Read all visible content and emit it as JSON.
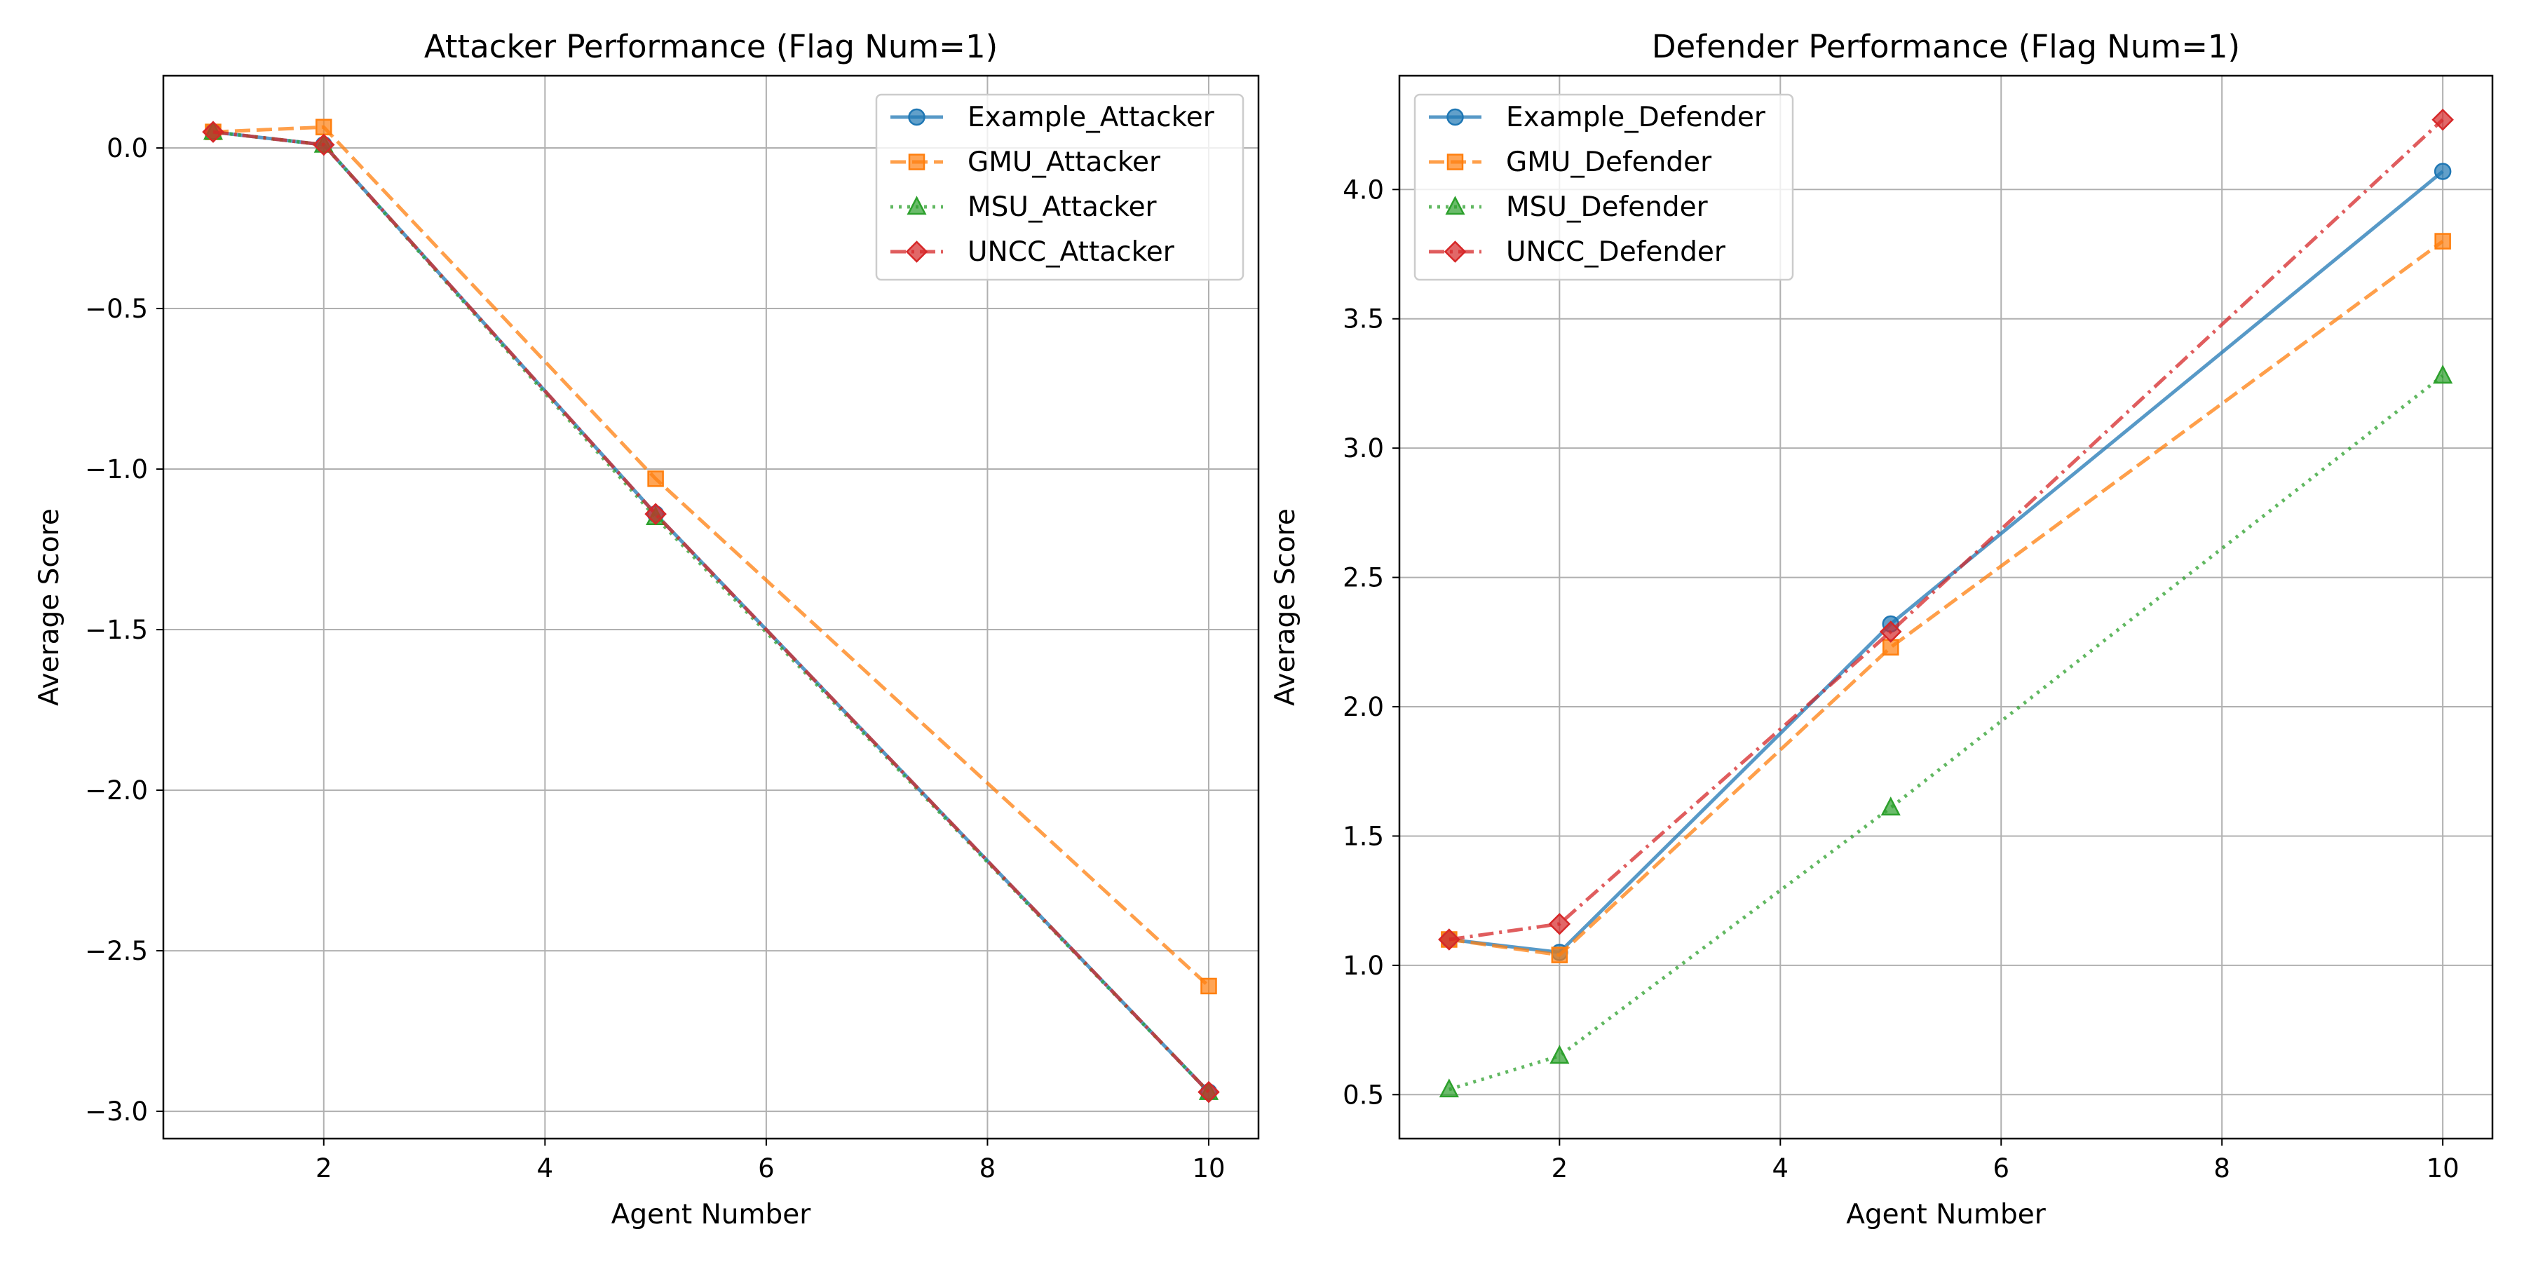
{
  "chart_data": [
    {
      "type": "line",
      "title": "Attacker Performance (Flag Num=1)",
      "xlabel": "Agent Number",
      "ylabel": "Average Score",
      "x": [
        1,
        2,
        5,
        10
      ],
      "xlim": [
        0.55,
        10.45
      ],
      "ylim": [
        -3.085,
        0.225
      ],
      "xticks": [
        2,
        4,
        6,
        8,
        10
      ],
      "yticks": [
        0.0,
        -0.5,
        -1.0,
        -1.5,
        -2.0,
        -2.5,
        -3.0
      ],
      "xtick_labels": [
        "2",
        "4",
        "6",
        "8",
        "10"
      ],
      "ytick_labels": [
        "0.0",
        "−0.5",
        "−1.0",
        "−1.5",
        "−2.0",
        "−2.5",
        "−3.0"
      ],
      "grid": true,
      "legend_position": "top-right",
      "series": [
        {
          "name": "Example_Attacker",
          "values": [
            0.05,
            0.01,
            -1.14,
            -2.94
          ],
          "color": "#1f77b4",
          "dash": "solid",
          "marker": "circle"
        },
        {
          "name": "GMU_Attacker",
          "values": [
            0.05,
            0.065,
            -1.03,
            -2.61
          ],
          "color": "#ff7f0e",
          "dash": "dashed",
          "marker": "square"
        },
        {
          "name": "MSU_Attacker",
          "values": [
            0.05,
            0.01,
            -1.15,
            -2.94
          ],
          "color": "#2ca02c",
          "dash": "dotted",
          "marker": "triangle"
        },
        {
          "name": "UNCC_Attacker",
          "values": [
            0.05,
            0.01,
            -1.14,
            -2.94
          ],
          "color": "#d62728",
          "dash": "dashdot",
          "marker": "diamond"
        }
      ]
    },
    {
      "type": "line",
      "title": "Defender Performance (Flag Num=1)",
      "xlabel": "Agent Number",
      "ylabel": "Average Score",
      "x": [
        1,
        2,
        5,
        10
      ],
      "xlim": [
        0.55,
        10.45
      ],
      "ylim": [
        0.33,
        4.44
      ],
      "xticks": [
        2,
        4,
        6,
        8,
        10
      ],
      "yticks": [
        0.5,
        1.0,
        1.5,
        2.0,
        2.5,
        3.0,
        3.5,
        4.0
      ],
      "xtick_labels": [
        "2",
        "4",
        "6",
        "8",
        "10"
      ],
      "ytick_labels": [
        "0.5",
        "1.0",
        "1.5",
        "2.0",
        "2.5",
        "3.0",
        "3.5",
        "4.0"
      ],
      "grid": true,
      "legend_position": "top-left",
      "series": [
        {
          "name": "Example_Defender",
          "values": [
            1.1,
            1.05,
            2.32,
            4.07
          ],
          "color": "#1f77b4",
          "dash": "solid",
          "marker": "circle"
        },
        {
          "name": "GMU_Defender",
          "values": [
            1.1,
            1.04,
            2.23,
            3.8
          ],
          "color": "#ff7f0e",
          "dash": "dashed",
          "marker": "square"
        },
        {
          "name": "MSU_Defender",
          "values": [
            0.52,
            0.65,
            1.61,
            3.28
          ],
          "color": "#2ca02c",
          "dash": "dotted",
          "marker": "triangle"
        },
        {
          "name": "UNCC_Defender",
          "values": [
            1.1,
            1.16,
            2.29,
            4.27
          ],
          "color": "#d62728",
          "dash": "dashdot",
          "marker": "diamond"
        }
      ]
    }
  ]
}
